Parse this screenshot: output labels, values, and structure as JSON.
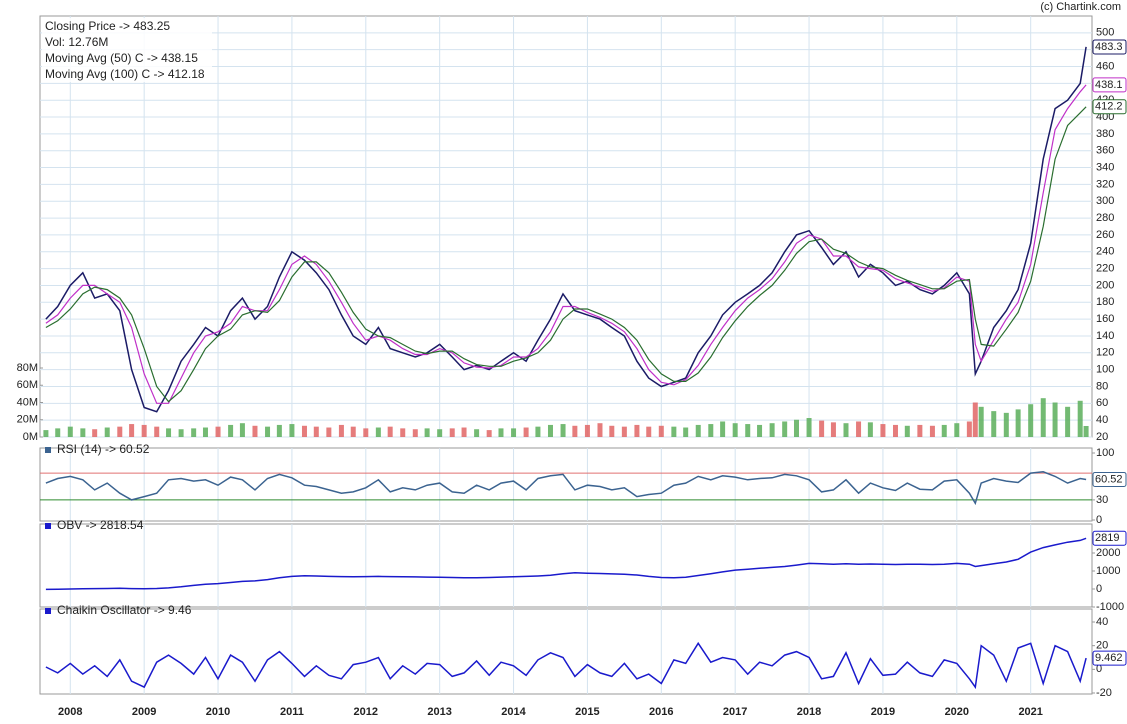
{
  "attribution": "(c) Chartink.com",
  "chart_data": [
    {
      "type": "line",
      "x": [
        2007.67,
        2007.83,
        2008.0,
        2008.17,
        2008.33,
        2008.5,
        2008.67,
        2008.83,
        2009.0,
        2009.17,
        2009.33,
        2009.5,
        2009.67,
        2009.83,
        2010.0,
        2010.17,
        2010.33,
        2010.5,
        2010.67,
        2010.83,
        2011.0,
        2011.17,
        2011.33,
        2011.5,
        2011.67,
        2011.83,
        2012.0,
        2012.17,
        2012.33,
        2012.5,
        2012.67,
        2012.83,
        2013.0,
        2013.17,
        2013.33,
        2013.5,
        2013.67,
        2013.83,
        2014.0,
        2014.17,
        2014.33,
        2014.5,
        2014.67,
        2014.83,
        2015.0,
        2015.17,
        2015.33,
        2015.5,
        2015.67,
        2015.83,
        2016.0,
        2016.17,
        2016.33,
        2016.5,
        2016.67,
        2016.83,
        2017.0,
        2017.17,
        2017.33,
        2017.5,
        2017.67,
        2017.83,
        2018.0,
        2018.17,
        2018.33,
        2018.5,
        2018.67,
        2018.83,
        2019.0,
        2019.17,
        2019.33,
        2019.5,
        2019.67,
        2019.83,
        2020.0,
        2020.17,
        2020.25,
        2020.33,
        2020.5,
        2020.67,
        2020.83,
        2021.0,
        2021.17,
        2021.33,
        2021.5,
        2021.67,
        2021.75
      ],
      "xlim": [
        2007.59,
        2021.83
      ],
      "xticks": [
        2008,
        2009,
        2010,
        2011,
        2012,
        2013,
        2014,
        2015,
        2016,
        2017,
        2018,
        2019,
        2020,
        2021
      ],
      "ylim": [
        20,
        520
      ],
      "yticks": [
        20,
        40,
        60,
        80,
        100,
        120,
        140,
        160,
        180,
        200,
        220,
        240,
        260,
        280,
        300,
        320,
        340,
        360,
        380,
        400,
        420,
        440,
        460,
        480,
        500
      ],
      "y2lim": [
        0,
        80
      ],
      "y2ticks": [
        {
          "value": 0,
          "label": "0M"
        },
        {
          "value": 20,
          "label": "20M"
        },
        {
          "value": 40,
          "label": "40M"
        },
        {
          "value": 60,
          "label": "60M"
        },
        {
          "value": 80,
          "label": "80M"
        }
      ],
      "grid": true,
      "series": [
        {
          "name": "Closing Price -> 483.25",
          "color": "#1b1b66",
          "marker_label": "483.3",
          "values": [
            160,
            175,
            200,
            215,
            185,
            190,
            170,
            100,
            55,
            50,
            75,
            110,
            130,
            150,
            140,
            170,
            185,
            160,
            175,
            210,
            240,
            230,
            215,
            195,
            165,
            140,
            130,
            150,
            125,
            120,
            115,
            120,
            130,
            115,
            100,
            105,
            100,
            110,
            120,
            110,
            135,
            160,
            190,
            170,
            165,
            160,
            150,
            140,
            110,
            90,
            80,
            85,
            90,
            120,
            140,
            165,
            180,
            190,
            200,
            215,
            240,
            260,
            265,
            245,
            225,
            240,
            210,
            225,
            215,
            200,
            205,
            195,
            190,
            200,
            215,
            190,
            95,
            110,
            150,
            170,
            195,
            250,
            350,
            410,
            420,
            440,
            483.25
          ]
        },
        {
          "name": "Vol: 12.76M",
          "type": "bar",
          "axis": "y2",
          "color": "#5aae5a",
          "down_color": "#e06565",
          "legend_color": "#111111",
          "values": [
            8,
            10,
            12,
            10,
            9,
            11,
            12,
            15,
            14,
            12,
            10,
            9,
            10,
            11,
            12,
            14,
            16,
            13,
            12,
            14,
            15,
            13,
            12,
            11,
            14,
            12,
            10,
            11,
            12,
            10,
            9,
            10,
            9,
            10,
            11,
            9,
            8,
            10,
            10,
            11,
            12,
            14,
            15,
            13,
            14,
            16,
            13,
            12,
            14,
            12,
            13,
            12,
            11,
            14,
            15,
            18,
            16,
            15,
            14,
            16,
            18,
            20,
            22,
            19,
            17,
            16,
            18,
            17,
            15,
            14,
            13,
            14,
            13,
            14,
            16,
            18,
            40,
            35,
            30,
            28,
            32,
            38,
            45,
            40,
            35,
            42,
            12.76
          ]
        },
        {
          "name": "Moving Avg (50) C -> 438.15",
          "color": "#c030c8",
          "marker_label": "438.1",
          "values": [
            155,
            165,
            185,
            200,
            200,
            190,
            180,
            150,
            95,
            60,
            60,
            90,
            120,
            140,
            145,
            155,
            175,
            170,
            170,
            195,
            225,
            235,
            225,
            205,
            180,
            155,
            135,
            140,
            135,
            125,
            118,
            118,
            125,
            120,
            108,
            103,
            102,
            105,
            115,
            115,
            125,
            145,
            175,
            175,
            168,
            162,
            155,
            145,
            125,
            100,
            85,
            82,
            88,
            105,
            130,
            150,
            170,
            185,
            195,
            208,
            228,
            250,
            260,
            255,
            235,
            235,
            222,
            220,
            218,
            208,
            203,
            198,
            193,
            197,
            210,
            205,
            130,
            110,
            135,
            160,
            180,
            225,
            310,
            385,
            410,
            430,
            438.15
          ]
        },
        {
          "name": "Moving Avg (100) C -> 412.18",
          "color": "#2a6e2f",
          "marker_label": "412.2",
          "values": [
            150,
            158,
            172,
            190,
            198,
            195,
            185,
            165,
            125,
            80,
            62,
            75,
            100,
            125,
            140,
            148,
            165,
            170,
            168,
            182,
            210,
            228,
            228,
            215,
            192,
            168,
            148,
            140,
            138,
            130,
            122,
            119,
            122,
            122,
            113,
            106,
            104,
            104,
            110,
            114,
            120,
            135,
            160,
            172,
            172,
            166,
            160,
            150,
            135,
            112,
            95,
            86,
            86,
            96,
            115,
            138,
            158,
            175,
            188,
            200,
            218,
            238,
            252,
            255,
            243,
            238,
            228,
            222,
            220,
            212,
            206,
            201,
            196,
            196,
            205,
            207,
            160,
            130,
            128,
            148,
            168,
            205,
            270,
            350,
            390,
            405,
            412.18
          ]
        }
      ]
    },
    {
      "type": "line",
      "ylim": [
        0,
        100
      ],
      "yticks": [
        0,
        30,
        100
      ],
      "levels": [
        {
          "value": 70,
          "color": "#e07070"
        },
        {
          "value": 30,
          "color": "#2e8b2e"
        }
      ],
      "series": [
        {
          "name": "RSI (14) -> 60.52",
          "color": "#3b6390",
          "marker_label": "60.52",
          "values": [
            55,
            62,
            65,
            60,
            45,
            55,
            40,
            30,
            35,
            40,
            60,
            62,
            58,
            60,
            52,
            64,
            60,
            45,
            62,
            68,
            63,
            52,
            50,
            45,
            40,
            42,
            48,
            60,
            42,
            48,
            45,
            52,
            55,
            42,
            40,
            52,
            45,
            55,
            58,
            45,
            62,
            66,
            68,
            45,
            52,
            50,
            45,
            48,
            35,
            38,
            40,
            52,
            55,
            65,
            60,
            66,
            64,
            60,
            62,
            63,
            68,
            66,
            60,
            42,
            45,
            60,
            40,
            55,
            48,
            44,
            55,
            46,
            45,
            58,
            60,
            40,
            25,
            55,
            62,
            58,
            56,
            70,
            72,
            65,
            55,
            62,
            60.52
          ]
        }
      ]
    },
    {
      "type": "line",
      "ylim": [
        -1000,
        3000
      ],
      "yticks": [
        -1000,
        0,
        1000,
        2000
      ],
      "series": [
        {
          "name": "OBV -> 2818.54",
          "color": "#1a1acc",
          "marker_label": "2819",
          "values": [
            -20,
            -10,
            0,
            10,
            20,
            30,
            40,
            20,
            10,
            30,
            60,
            120,
            200,
            260,
            300,
            360,
            420,
            450,
            520,
            620,
            700,
            740,
            720,
            700,
            690,
            680,
            690,
            700,
            690,
            680,
            670,
            660,
            650,
            640,
            620,
            630,
            640,
            660,
            680,
            700,
            720,
            760,
            850,
            900,
            880,
            860,
            840,
            820,
            780,
            700,
            640,
            620,
            650,
            750,
            850,
            950,
            1050,
            1100,
            1150,
            1200,
            1250,
            1330,
            1420,
            1400,
            1380,
            1400,
            1370,
            1390,
            1380,
            1360,
            1380,
            1370,
            1360,
            1380,
            1420,
            1380,
            1250,
            1300,
            1400,
            1500,
            1650,
            2050,
            2300,
            2450,
            2600,
            2700,
            2818.54
          ]
        }
      ]
    },
    {
      "type": "line",
      "ylim": [
        -20,
        40
      ],
      "yticks": [
        -20,
        0,
        20,
        40
      ],
      "series": [
        {
          "name": "Chaikin Oscillator -> 9.46",
          "color": "#1a1acc",
          "marker_label": "9.462",
          "values": [
            2,
            -3,
            5,
            -4,
            3,
            -6,
            8,
            -10,
            -15,
            6,
            12,
            5,
            -4,
            10,
            -8,
            12,
            6,
            -10,
            8,
            15,
            5,
            -6,
            3,
            -5,
            -8,
            4,
            6,
            10,
            -8,
            3,
            -4,
            5,
            4,
            -6,
            -3,
            7,
            -5,
            6,
            3,
            -5,
            8,
            14,
            10,
            -6,
            4,
            -3,
            -6,
            5,
            -8,
            -4,
            -12,
            8,
            5,
            22,
            6,
            10,
            8,
            -4,
            6,
            3,
            12,
            15,
            10,
            -8,
            -6,
            14,
            -12,
            9,
            -5,
            -4,
            6,
            -3,
            -6,
            8,
            5,
            -8,
            -15,
            20,
            12,
            -10,
            18,
            22,
            -12,
            20,
            15,
            -10,
            9.462
          ]
        }
      ]
    }
  ]
}
